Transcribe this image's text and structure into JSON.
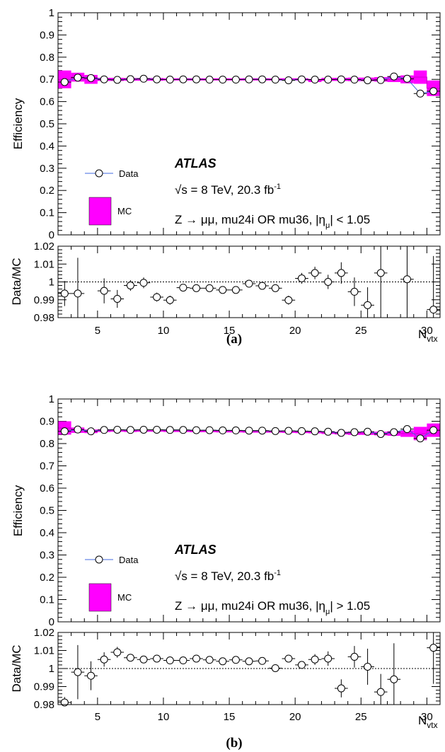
{
  "chart_data": [
    {
      "type": "scatter",
      "label": "(a)",
      "ylabel": "Efficiency",
      "ylim": [
        0,
        1
      ],
      "yticks": [
        "0",
        "0.1",
        "0.2",
        "0.3",
        "0.4",
        "0.5",
        "0.6",
        "0.7",
        "0.8",
        "0.9",
        "1"
      ],
      "x": [
        2.5,
        3.5,
        4.5,
        5.5,
        6.5,
        7.5,
        8.5,
        9.5,
        10.5,
        11.5,
        12.5,
        13.5,
        14.5,
        15.5,
        16.5,
        17.5,
        18.5,
        19.5,
        20.5,
        21.5,
        22.5,
        23.5,
        24.5,
        25.5,
        26.5,
        27.5,
        28.5,
        29.5,
        30.5
      ],
      "series": [
        {
          "name": "Data",
          "values": [
            0.688,
            0.708,
            0.706,
            0.7,
            0.698,
            0.701,
            0.703,
            0.7,
            0.699,
            0.7,
            0.7,
            0.699,
            0.699,
            0.699,
            0.7,
            0.7,
            0.699,
            0.696,
            0.7,
            0.699,
            0.699,
            0.7,
            0.699,
            0.696,
            0.697,
            0.713,
            0.703,
            0.636,
            0.647
          ]
        },
        {
          "name": "MC",
          "values": [
            0.7,
            0.71,
            0.7,
            0.7,
            0.7,
            0.7,
            0.7,
            0.7,
            0.7,
            0.7,
            0.7,
            0.7,
            0.7,
            0.7,
            0.7,
            0.7,
            0.7,
            0.7,
            0.7,
            0.695,
            0.7,
            0.7,
            0.7,
            0.7,
            0.7,
            0.7,
            0.7,
            0.71,
            0.66
          ],
          "halfwidth": [
            0.04,
            0.02,
            0.02,
            0.007,
            0.007,
            0.006,
            0.006,
            0.006,
            0.005,
            0.005,
            0.005,
            0.005,
            0.005,
            0.005,
            0.005,
            0.005,
            0.005,
            0.005,
            0.005,
            0.007,
            0.007,
            0.007,
            0.008,
            0.008,
            0.01,
            0.012,
            0.018,
            0.03,
            0.035
          ]
        }
      ],
      "legend": {
        "data": "Data",
        "mc": "MC"
      },
      "atlas": "ATLAS",
      "energy_line": {
        "pre": "√s = 8 TeV, 20.3 fb",
        "sup": "-1"
      },
      "selection_line": {
        "pre": "Z → μμ, mu24i OR mu36, |η",
        "sub": "μ",
        "post": "| < 1.05"
      },
      "ratio": {
        "ylabel": "Data/MC",
        "ylim": [
          0.98,
          1.02
        ],
        "yticks": [
          "0.98",
          "0.99",
          "1",
          "1.01",
          "1.02"
        ],
        "values": [
          0.9935,
          0.9935,
          null,
          0.995,
          0.9905,
          0.998,
          0.9995,
          0.9915,
          0.9898,
          0.9968,
          0.9965,
          0.9965,
          0.9955,
          0.9955,
          0.999,
          0.9978,
          0.9965,
          0.9898,
          1.002,
          1.005,
          1.0,
          1.005,
          0.9945,
          0.987,
          1.005,
          null,
          1.0015,
          null,
          0.9845
        ],
        "errors": [
          0.007,
          0.02,
          null,
          0.007,
          0.005,
          0.003,
          0.003,
          0.0025,
          0.0025,
          0.0015,
          0.0015,
          0.0015,
          0.0015,
          0.0015,
          0.0015,
          0.0015,
          0.002,
          0.0025,
          0.003,
          0.0035,
          0.004,
          0.006,
          0.008,
          0.01,
          0.03,
          null,
          0.025,
          null,
          0.03
        ]
      },
      "xlabel": {
        "main": "N",
        "sub": "vtx"
      },
      "xticks": [
        "5",
        "10",
        "15",
        "20",
        "25",
        "30"
      ]
    },
    {
      "type": "scatter",
      "label": "(b)",
      "ylabel": "Efficiency",
      "ylim": [
        0,
        1
      ],
      "yticks": [
        "0",
        "0.1",
        "0.2",
        "0.3",
        "0.4",
        "0.5",
        "0.6",
        "0.7",
        "0.8",
        "0.9",
        "1"
      ],
      "x": [
        2.5,
        3.5,
        4.5,
        5.5,
        6.5,
        7.5,
        8.5,
        9.5,
        10.5,
        11.5,
        12.5,
        13.5,
        14.5,
        15.5,
        16.5,
        17.5,
        18.5,
        19.5,
        20.5,
        21.5,
        22.5,
        23.5,
        24.5,
        25.5,
        26.5,
        27.5,
        28.5,
        29.5,
        30.5
      ],
      "series": [
        {
          "name": "Data",
          "values": [
            0.855,
            0.863,
            0.855,
            0.861,
            0.862,
            0.861,
            0.862,
            0.862,
            0.861,
            0.861,
            0.86,
            0.86,
            0.859,
            0.859,
            0.858,
            0.858,
            0.856,
            0.857,
            0.856,
            0.855,
            0.853,
            0.848,
            0.851,
            0.853,
            0.843,
            0.851,
            0.865,
            0.823,
            0.86
          ]
        },
        {
          "name": "MC",
          "values": [
            0.87,
            0.86,
            0.855,
            0.858,
            0.858,
            0.857,
            0.858,
            0.858,
            0.857,
            0.857,
            0.856,
            0.856,
            0.855,
            0.855,
            0.854,
            0.854,
            0.854,
            0.853,
            0.852,
            0.851,
            0.849,
            0.847,
            0.846,
            0.846,
            0.845,
            0.845,
            0.845,
            0.845,
            0.86
          ],
          "halfwidth": [
            0.03,
            0.012,
            0.008,
            0.006,
            0.005,
            0.005,
            0.005,
            0.005,
            0.005,
            0.005,
            0.005,
            0.005,
            0.005,
            0.005,
            0.005,
            0.005,
            0.005,
            0.005,
            0.005,
            0.005,
            0.006,
            0.006,
            0.007,
            0.007,
            0.008,
            0.01,
            0.015,
            0.03,
            0.03
          ]
        }
      ],
      "legend": {
        "data": "Data",
        "mc": "MC"
      },
      "atlas": "ATLAS",
      "energy_line": {
        "pre": "√s = 8 TeV, 20.3 fb",
        "sup": "-1"
      },
      "selection_line": {
        "pre": "Z → μμ, mu24i OR mu36, |η",
        "sub": "μ",
        "post": "| > 1.05"
      },
      "ratio": {
        "ylabel": "Data/MC",
        "ylim": [
          0.98,
          1.02
        ],
        "yticks": [
          "0.98",
          "0.99",
          "1",
          "1.01",
          "1.02"
        ],
        "values": [
          0.9812,
          0.998,
          0.996,
          1.005,
          1.009,
          1.006,
          1.005,
          1.0055,
          1.0045,
          1.0045,
          1.0055,
          1.0048,
          1.004,
          1.0048,
          1.004,
          1.0042,
          1.0002,
          1.0055,
          1.002,
          1.005,
          1.0055,
          0.989,
          1.0065,
          1.001,
          0.987,
          0.994,
          null,
          null,
          1.0115
        ],
        "errors": [
          0.003,
          0.015,
          0.008,
          0.004,
          0.003,
          0.002,
          0.002,
          0.0015,
          0.0015,
          0.0015,
          0.0015,
          0.0015,
          0.0015,
          0.0015,
          0.0015,
          0.002,
          0.002,
          0.002,
          0.002,
          0.003,
          0.004,
          0.005,
          0.006,
          0.01,
          0.01,
          0.02,
          null,
          null,
          0.02
        ]
      },
      "xlabel": {
        "main": "N",
        "sub": "vtx"
      },
      "xticks": [
        "5",
        "10",
        "15",
        "20",
        "25",
        "30"
      ]
    }
  ]
}
